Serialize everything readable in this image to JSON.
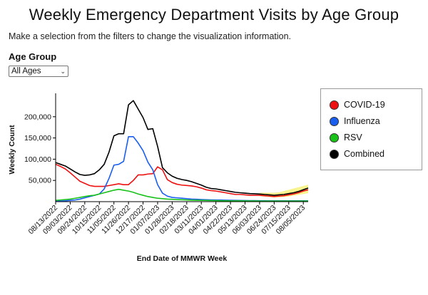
{
  "header": {
    "title": "Weekly Emergency Department Visits by Age Group",
    "subtitle": "Make a selection from the filters to change the visualization information."
  },
  "filters": {
    "age_group_label": "Age Group",
    "age_group_selected": "All Ages"
  },
  "legend": {
    "items": [
      {
        "label": "COVID-19",
        "color": "#ee1111"
      },
      {
        "label": "Influenza",
        "color": "#1a5ef0"
      },
      {
        "label": "RSV",
        "color": "#19c219"
      },
      {
        "label": "Combined",
        "color": "#000000"
      }
    ]
  },
  "chart_data": {
    "type": "line",
    "title": "Weekly Emergency Department Visits by Age Group",
    "xlabel": "End Date of MMWR Week",
    "ylabel": "Weekly Count",
    "ylim": [
      0,
      245000
    ],
    "y_ticks": [
      50000,
      100000,
      150000,
      200000
    ],
    "y_tick_labels": [
      "50,000",
      "100,000",
      "150,000",
      "200,000"
    ],
    "x_tick_labels": [
      "08/13/2022",
      "09/03/2022",
      "09/24/2022",
      "10/15/2022",
      "11/05/2022",
      "11/26/2022",
      "12/17/2022",
      "01/07/2023",
      "01/28/2023",
      "02/18/2023",
      "03/11/2023",
      "04/01/2023",
      "04/22/2023",
      "05/13/2023",
      "06/03/2023",
      "06/24/2023",
      "07/15/2023",
      "08/05/2023"
    ],
    "x": [
      "08/13/2022",
      "08/20/2022",
      "08/27/2022",
      "09/03/2022",
      "09/10/2022",
      "09/17/2022",
      "09/24/2022",
      "10/01/2022",
      "10/08/2022",
      "10/15/2022",
      "10/22/2022",
      "10/29/2022",
      "11/05/2022",
      "11/12/2022",
      "11/19/2022",
      "11/26/2022",
      "12/03/2022",
      "12/10/2022",
      "12/17/2022",
      "12/24/2022",
      "12/31/2022",
      "01/07/2023",
      "01/14/2023",
      "01/21/2023",
      "01/28/2023",
      "02/04/2023",
      "02/11/2023",
      "02/18/2023",
      "02/25/2023",
      "03/04/2023",
      "03/11/2023",
      "03/18/2023",
      "03/25/2023",
      "04/01/2023",
      "04/08/2023",
      "04/15/2023",
      "04/22/2023",
      "04/29/2023",
      "05/06/2023",
      "05/13/2023",
      "05/20/2023",
      "05/27/2023",
      "06/03/2023",
      "06/10/2023",
      "06/17/2023",
      "06/24/2023",
      "07/01/2023",
      "07/08/2023",
      "07/15/2023",
      "07/22/2023",
      "07/29/2023",
      "08/05/2023",
      "08/12/2023"
    ],
    "grid": false,
    "legend_position": "right",
    "series": [
      {
        "name": "COVID-19",
        "color": "#ee1111",
        "values": [
          88000,
          83000,
          77000,
          68000,
          58000,
          48000,
          43000,
          38000,
          36000,
          36000,
          36000,
          38000,
          40000,
          42000,
          40000,
          40000,
          50000,
          63000,
          63000,
          65000,
          66000,
          82000,
          75000,
          52000,
          45000,
          41000,
          39000,
          38000,
          37000,
          35000,
          32000,
          28000,
          26000,
          25000,
          23000,
          21000,
          19000,
          17000,
          17000,
          16000,
          15000,
          15000,
          15000,
          14000,
          13000,
          12000,
          13000,
          14000,
          16000,
          18000,
          21000,
          25000,
          28000
        ]
      },
      {
        "name": "Influenza",
        "color": "#1a5ef0",
        "values": [
          1000,
          1500,
          2000,
          3000,
          4000,
          6000,
          9000,
          12000,
          15000,
          18000,
          30000,
          55000,
          86000,
          88000,
          95000,
          153000,
          153000,
          138000,
          120000,
          93000,
          75000,
          40000,
          20000,
          13000,
          10000,
          9000,
          8000,
          7000,
          6000,
          5500,
          5000,
          4500,
          4200,
          4000,
          3800,
          3500,
          3300,
          3000,
          2800,
          2600,
          2500,
          2400,
          2300,
          2200,
          2100,
          2000,
          2000,
          2000,
          2000,
          2000,
          2000,
          2000,
          2000
        ]
      },
      {
        "name": "RSV",
        "color": "#19c219",
        "values": [
          3000,
          4000,
          5000,
          6000,
          8000,
          10000,
          12000,
          14000,
          15000,
          18000,
          21000,
          24000,
          27000,
          29000,
          27000,
          25000,
          22000,
          18000,
          15000,
          12000,
          10000,
          8000,
          7000,
          6000,
          5500,
          5000,
          4500,
          4000,
          3500,
          3200,
          3000,
          2800,
          2600,
          2400,
          2200,
          2000,
          1900,
          1800,
          1700,
          1600,
          1500,
          1500,
          1400,
          1400,
          1300,
          1300,
          1300,
          1300,
          1300,
          1300,
          1300,
          1300,
          1300
        ]
      },
      {
        "name": "Combined",
        "color": "#000000",
        "values": [
          92000,
          88000,
          84000,
          77000,
          70000,
          64000,
          62000,
          63000,
          66000,
          75000,
          88000,
          117000,
          155000,
          160000,
          160000,
          228000,
          238000,
          218000,
          198000,
          170000,
          172000,
          130000,
          80000,
          68000,
          60000,
          55000,
          52000,
          50000,
          47000,
          43000,
          39000,
          34000,
          31000,
          30000,
          28000,
          26000,
          24000,
          22000,
          21000,
          20000,
          19000,
          18500,
          18000,
          17000,
          16000,
          15000,
          16000,
          17000,
          19000,
          21000,
          24000,
          28000,
          32000
        ]
      },
      {
        "name": "",
        "color": "#f5f06a",
        "band": true,
        "band_start_index": 42,
        "lower": [
          13000,
          12000,
          11000,
          10000,
          10000,
          11000,
          12000,
          14000,
          16000,
          18000,
          20000
        ],
        "upper": [
          21000,
          21000,
          21000,
          21000,
          22000,
          25000,
          28000,
          31000,
          34000,
          37000,
          40000
        ]
      }
    ]
  }
}
